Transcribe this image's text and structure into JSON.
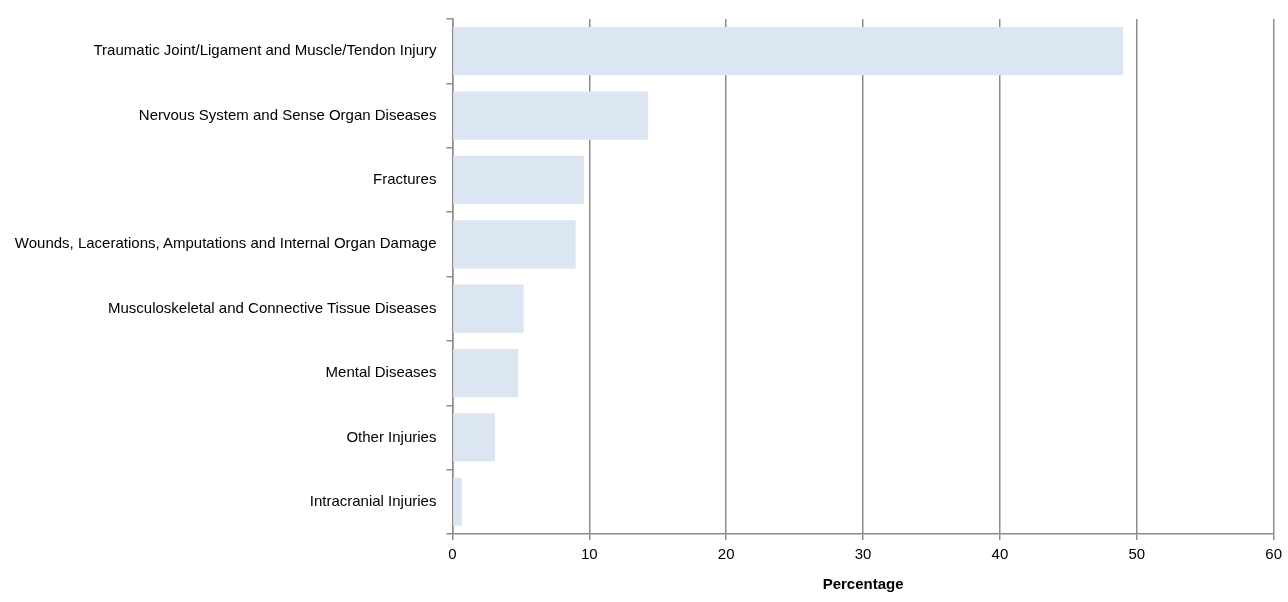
{
  "chart_data": {
    "type": "bar",
    "orientation": "horizontal",
    "xlabel": "Percentage",
    "categories": [
      "Traumatic Joint/Ligament and Muscle/Tendon Injury",
      "Nervous System and Sense Organ Diseases",
      "Fractures",
      "Wounds, Lacerations, Amputations and Internal Organ Damage",
      "Musculoskeletal and Connective Tissue Diseases",
      "Mental Diseases",
      "Other Injuries",
      "Intracranial Injuries"
    ],
    "values": [
      49.0,
      14.3,
      9.6,
      9.0,
      5.2,
      4.8,
      3.1,
      0.7
    ],
    "color": "#dce6f2",
    "xlim": [
      0,
      60
    ],
    "xticks": [
      0,
      10,
      20,
      30,
      40,
      50,
      60
    ],
    "grid": "x",
    "legend": false
  }
}
